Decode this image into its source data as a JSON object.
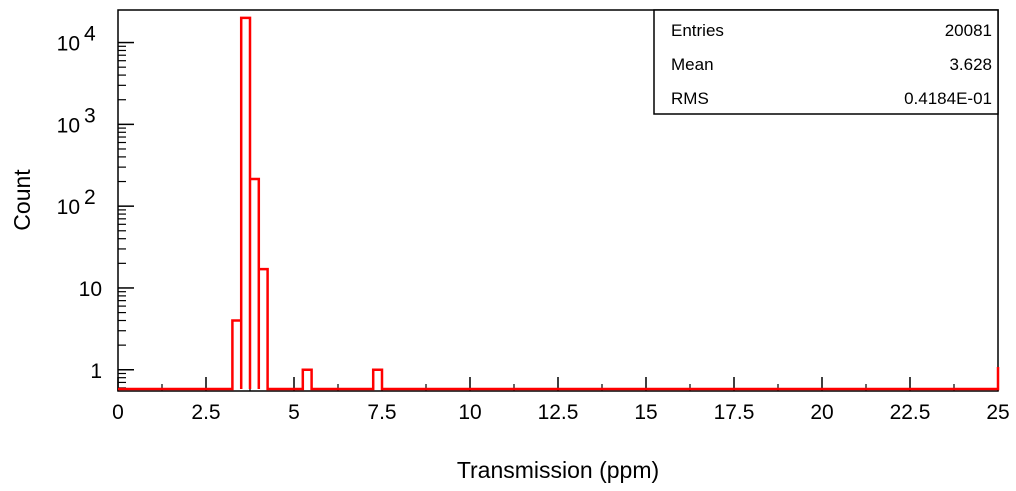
{
  "chart_data": {
    "type": "histogram",
    "title": "",
    "xlabel": "Transmission (ppm)",
    "ylabel": "Count",
    "y_scale": "log",
    "xlim": [
      0,
      25
    ],
    "ylim": [
      0.55,
      25000
    ],
    "grid": false,
    "line_color": "#ff0000",
    "x_ticks": [
      {
        "value": 0,
        "label": "0"
      },
      {
        "value": 2.5,
        "label": "2.5"
      },
      {
        "value": 5,
        "label": "5"
      },
      {
        "value": 7.5,
        "label": "7.5"
      },
      {
        "value": 10,
        "label": "10"
      },
      {
        "value": 12.5,
        "label": "12.5"
      },
      {
        "value": 15,
        "label": "15"
      },
      {
        "value": 17.5,
        "label": "17.5"
      },
      {
        "value": 20,
        "label": "20"
      },
      {
        "value": 22.5,
        "label": "22.5"
      },
      {
        "value": 25,
        "label": "25"
      }
    ],
    "y_ticks": [
      {
        "value": 1,
        "label": "1"
      },
      {
        "value": 10,
        "label": "10"
      },
      {
        "value": 100,
        "label": "10",
        "exp": "2"
      },
      {
        "value": 1000,
        "label": "10",
        "exp": "3"
      },
      {
        "value": 10000,
        "label": "10",
        "exp": "4"
      }
    ],
    "bins": [
      {
        "x0": 3.25,
        "x1": 3.5,
        "count": 4
      },
      {
        "x0": 3.5,
        "x1": 3.75,
        "count": 20000
      },
      {
        "x0": 3.75,
        "x1": 4.0,
        "count": 215
      },
      {
        "x0": 4.0,
        "x1": 4.25,
        "count": 17
      },
      {
        "x0": 5.25,
        "x1": 5.5,
        "count": 1
      },
      {
        "x0": 7.25,
        "x1": 7.5,
        "count": 1
      }
    ]
  },
  "stats": {
    "rows": [
      {
        "label": "Entries",
        "value": "20081"
      },
      {
        "label": "Mean",
        "value": "3.628"
      },
      {
        "label": "RMS",
        "value": "0.4184E-01"
      }
    ]
  }
}
